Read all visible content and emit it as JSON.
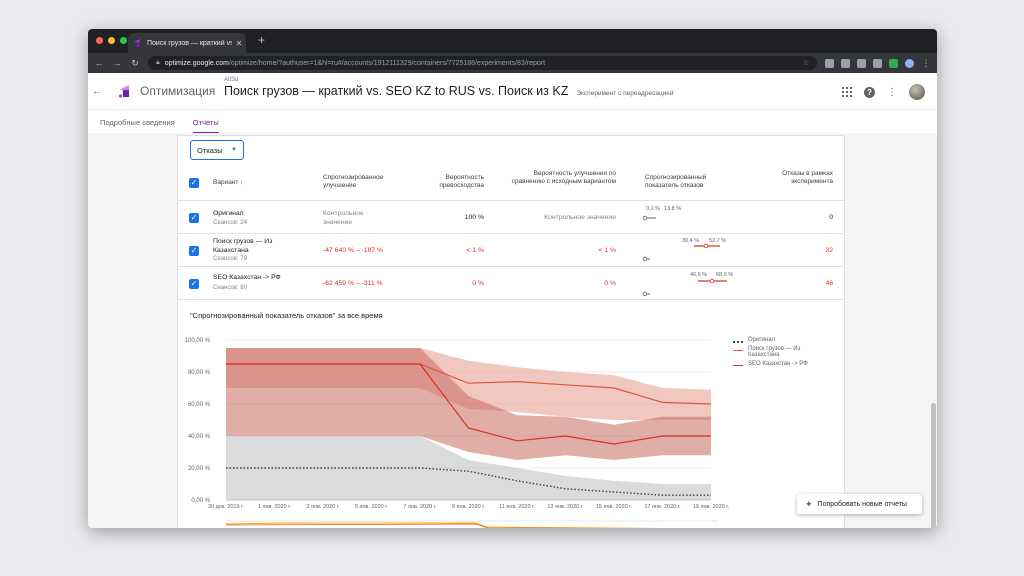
{
  "browser": {
    "tab_title": "Поиск грузов — краткий vs. SE",
    "tab_close": "✕",
    "new_tab": "+",
    "url_host": "optimize.google.com",
    "url_path": "/optimize/home/?authuser=1&hl=ru#/accounts/1912111329/containers/7725188/experiments/83/report"
  },
  "app": {
    "name": "Оптимизация",
    "account": "AtiSu",
    "experiment_title": "Поиск грузов — краткий vs. SEO KZ to RUS vs. Поиск из KZ",
    "experiment_type": "Эксперимент с переадресацией"
  },
  "subtabs": [
    {
      "label": "Подробные сведения",
      "active": false
    },
    {
      "label": "Отчеты",
      "active": true
    }
  ],
  "metric_select": {
    "value": "Отказы"
  },
  "table": {
    "headers": {
      "variant": "Вариант ↑",
      "predicted_improvement": "Спрогнозированное улучшение",
      "prob_best": "Вероятность превосходства",
      "prob_beat_baseline": "Вероятность улучшения по сравнению с исходным вариантом",
      "predicted_rate": "Спрогнозированный показатель отказов",
      "bounces": "Отказы в рамках эксперимента"
    },
    "rows": [
      {
        "name": "Оригинал",
        "sessions": "Сеансов: 24",
        "improvement": "Контрольное значение",
        "prob_best": "100 %",
        "prob_beat": "Контрольное значение",
        "ci_low": "0,1 %",
        "ci_high": "13,8 %",
        "bounces": "0",
        "highlight": false
      },
      {
        "name": "Поиск грузов — Из Казахстана",
        "sessions": "Сеансов: 79",
        "improvement": "-47 640 % – -187 %",
        "prob_best": "< 1 %",
        "prob_beat": "< 1 %",
        "ci_low": "30,4 %",
        "ci_high": "52,7 %",
        "bounces": "32",
        "highlight": true
      },
      {
        "name": "SEO Казахстан -> РФ",
        "sessions": "Сеансов: 80",
        "improvement": "-62 459 % – -311 %",
        "prob_best": "0 %",
        "prob_beat": "0 %",
        "ci_low": "46,6 %",
        "ci_high": "68,9 %",
        "bounces": "46",
        "highlight": true
      }
    ]
  },
  "chart_title": "\"Спрогнозированный показатель отказов\" за все время",
  "chart_data": {
    "type": "area",
    "title": "\"Спрогнозированный показатель отказов\" за все время",
    "x": [
      "30 дек. 2019 г.",
      "1 янв. 2020 г.",
      "3 янв. 2020 г.",
      "5 янв. 2020 г.",
      "7 янв. 2020 г.",
      "9 янв. 2020 г.",
      "11 янв. 2020 г.",
      "13 янв. 2020 г.",
      "15 янв. 2020 г.",
      "17 янв. 2020 г.",
      "19 янв. 2020 г."
    ],
    "y_ticks": [
      "100,00 %",
      "80,00 %",
      "60,00 %",
      "40,00 %",
      "20,00 %",
      "0,00 %"
    ],
    "ylim": [
      0,
      100
    ],
    "legend_position": "right",
    "series": [
      {
        "name": "Оригинал",
        "style": "dotted",
        "color": "#3c4043",
        "band_color": "#bdbdbd",
        "values": [
          20,
          20,
          20,
          20,
          20,
          18,
          12,
          7,
          5,
          3,
          3
        ],
        "lower": [
          0,
          0,
          0,
          0,
          0,
          0,
          0,
          0,
          0,
          0,
          0
        ],
        "upper": [
          40,
          40,
          40,
          40,
          40,
          25,
          20,
          15,
          12,
          10,
          10
        ]
      },
      {
        "name": "Поиск грузов — Из Казахстана",
        "style": "solid",
        "color": "#e0573a",
        "band_color": "#e39a8c",
        "values": [
          85,
          85,
          85,
          85,
          85,
          73,
          74,
          72,
          70,
          61,
          60
        ],
        "lower": [
          70,
          70,
          70,
          70,
          70,
          57,
          55,
          52,
          50,
          50,
          50
        ],
        "upper": [
          95,
          95,
          95,
          95,
          95,
          87,
          83,
          80,
          78,
          70,
          69
        ]
      },
      {
        "name": "SEO Казахстан -> РФ",
        "style": "solid",
        "color": "#d93025",
        "band_color": "#c96a5e",
        "values": [
          85,
          85,
          85,
          85,
          85,
          45,
          37,
          40,
          35,
          40,
          40
        ],
        "lower": [
          40,
          40,
          40,
          40,
          40,
          30,
          25,
          28,
          25,
          28,
          28
        ],
        "upper": [
          95,
          95,
          95,
          95,
          95,
          65,
          53,
          52,
          47,
          52,
          52
        ]
      }
    ]
  },
  "try_button": "Попробовать новые отчеты"
}
